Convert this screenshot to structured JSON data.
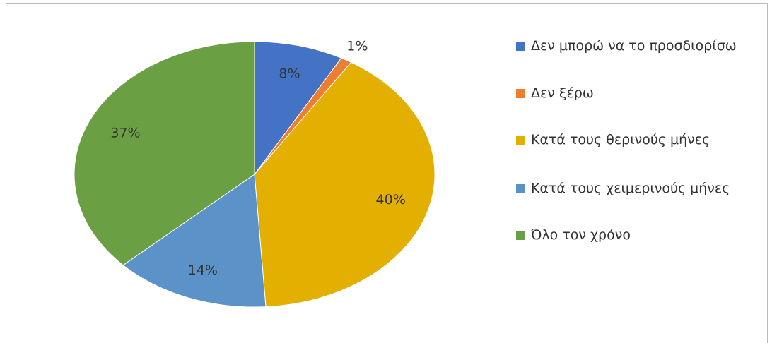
{
  "chart_data": {
    "type": "pie",
    "categories": [
      "Δεν μπορώ να το προσδιορίσω",
      "Δεν ξέρω",
      "Κατά τους θερινούς μήνες",
      "Κατά τους χειμερινούς μήνες",
      "Όλο τον χρόνο"
    ],
    "values": [
      8,
      1,
      40,
      14,
      37
    ],
    "value_labels": [
      "8%",
      "1%",
      "40%",
      "14%",
      "37%"
    ],
    "colors": [
      "#4472c4",
      "#ed7d31",
      "#e3af00",
      "#5b93c9",
      "#6aa043"
    ],
    "legend": "right"
  }
}
